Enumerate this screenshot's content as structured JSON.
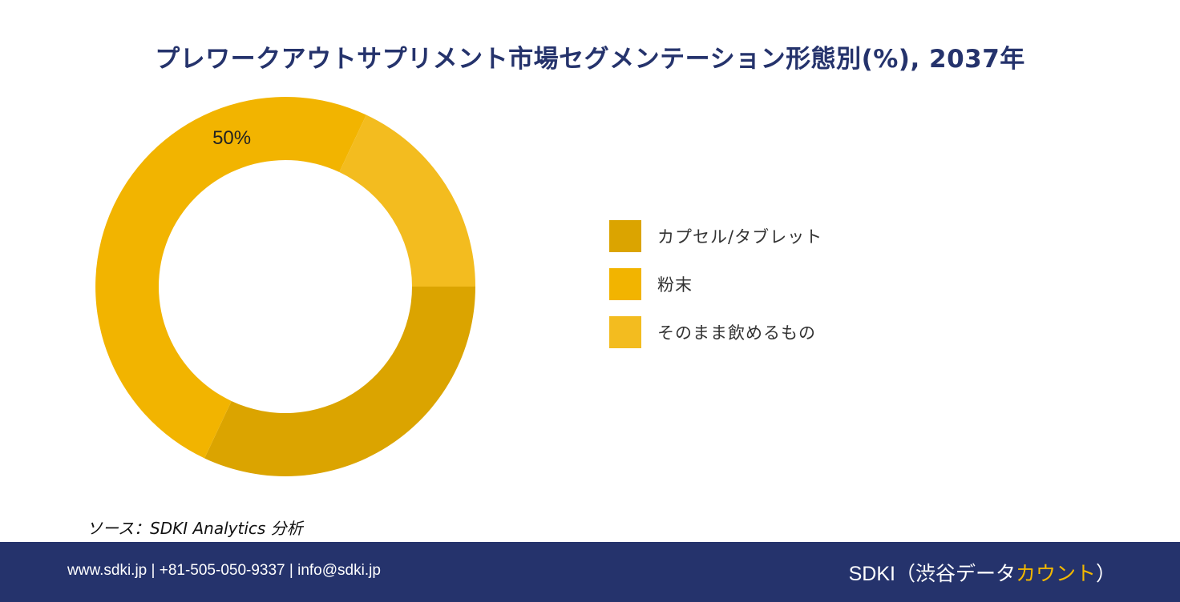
{
  "title": "プレワークアウトサプリメント市場セグメンテーション形態別(%), 2037年",
  "chart_data": {
    "type": "pie",
    "variant": "donut",
    "categories": [
      "カプセル/タブレット",
      "粉末",
      "そのまま飲めるもの"
    ],
    "values": [
      32,
      50,
      18
    ],
    "colors": [
      "#dba400",
      "#f2b400",
      "#f3bc1f"
    ],
    "data_labels": [
      {
        "category": "粉末",
        "text": "50%"
      }
    ],
    "legend_position": "right"
  },
  "source": "ソース：SDKI Analytics 分析",
  "footer": {
    "contact": "www.sdki.jp | +81-505-050-9337 | info@sdki.jp",
    "brand_prefix": "SDKI（渋谷データ",
    "brand_accent": "カウント",
    "brand_suffix": "）"
  }
}
